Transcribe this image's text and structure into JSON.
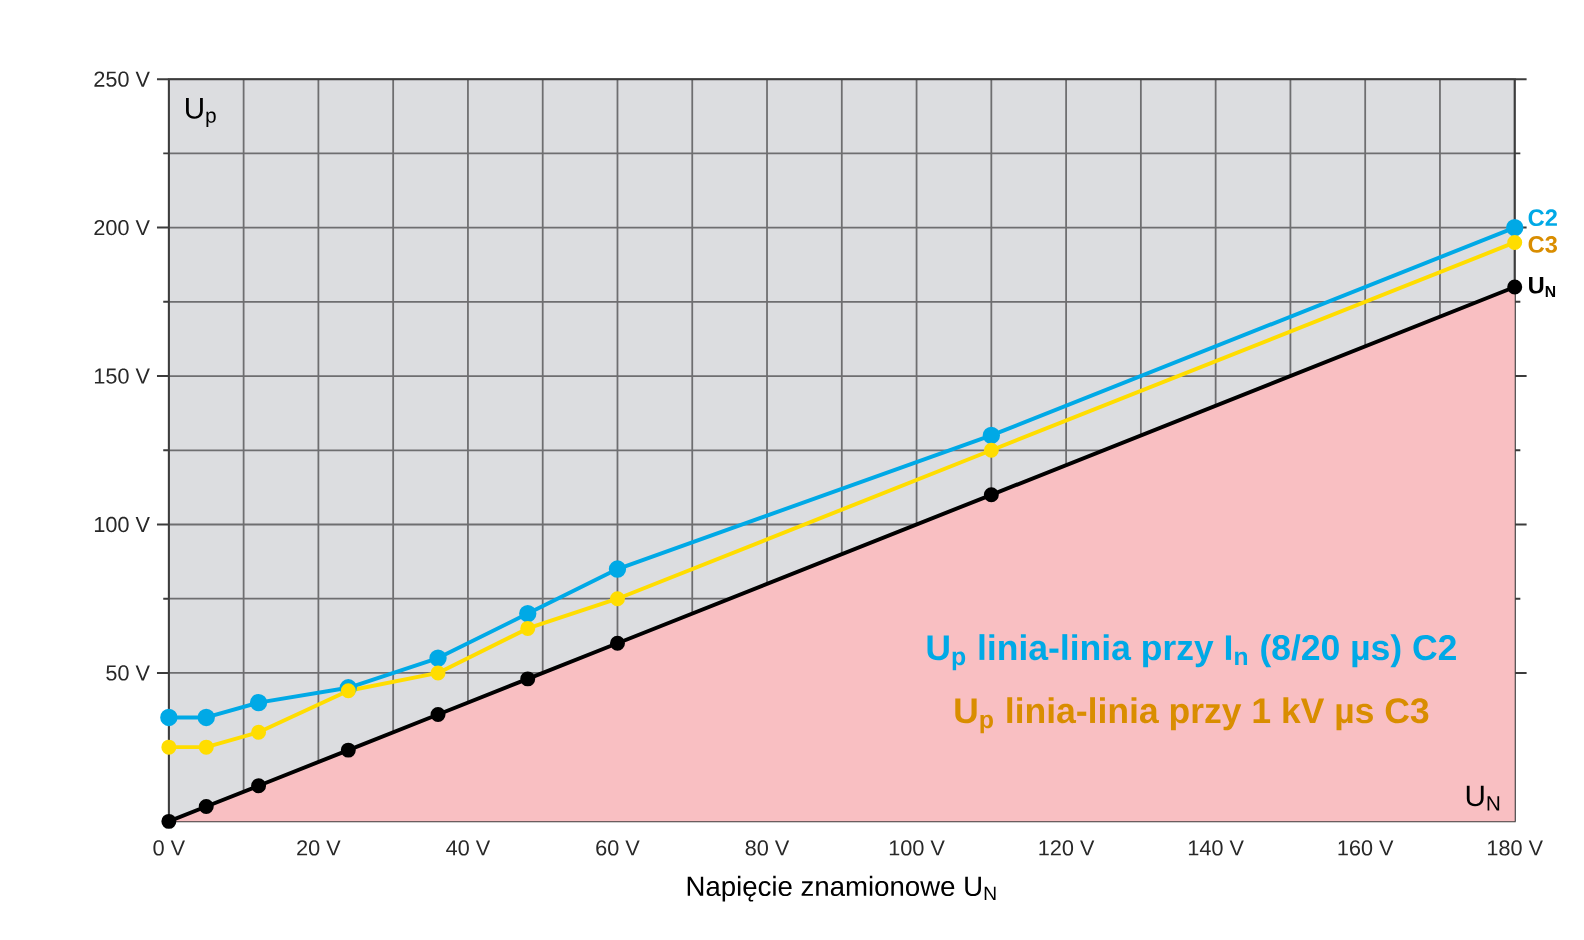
{
  "chart_data": {
    "type": "line",
    "xlabel": "Napięcie znamionowe U$_{N}$",
    "ylabel": "U$_{p}$",
    "xlim": [
      0,
      180
    ],
    "ylim": [
      0,
      250
    ],
    "xticks": [
      {
        "value": 0,
        "label": "0 V"
      },
      {
        "value": 20,
        "label": "20 V"
      },
      {
        "value": 40,
        "label": "40 V"
      },
      {
        "value": 60,
        "label": "60 V"
      },
      {
        "value": 80,
        "label": "80 V"
      },
      {
        "value": 100,
        "label": "100 V"
      },
      {
        "value": 120,
        "label": "120 V"
      },
      {
        "value": 140,
        "label": "140 V"
      },
      {
        "value": 160,
        "label": "160 V"
      },
      {
        "value": 180,
        "label": "180 V"
      }
    ],
    "yticks": [
      {
        "value": 50,
        "label": "50 V"
      },
      {
        "value": 100,
        "label": "100 V"
      },
      {
        "value": 150,
        "label": "150 V"
      },
      {
        "value": 200,
        "label": "200 V"
      },
      {
        "value": 250,
        "label": "250 V"
      }
    ],
    "grid": true,
    "marker": "circle",
    "series": [
      {
        "name": "C2",
        "color": "#00a9e6",
        "x": [
          0,
          5,
          12,
          24,
          36,
          48,
          60,
          110,
          180
        ],
        "values": [
          35,
          35,
          40,
          45,
          55,
          70,
          85,
          130,
          200
        ]
      },
      {
        "name": "C3",
        "color": "#ffdd00",
        "x": [
          0,
          5,
          12,
          24,
          36,
          48,
          60,
          110,
          180
        ],
        "values": [
          25,
          25,
          30,
          44,
          50,
          65,
          75,
          125,
          195
        ]
      },
      {
        "name": "U$_{N}$",
        "type": "area",
        "color": "#f9bfc2",
        "x": [
          0,
          5,
          12,
          24,
          36,
          48,
          60,
          110,
          180
        ],
        "values": [
          0,
          5,
          12,
          24,
          36,
          48,
          60,
          110,
          180
        ]
      }
    ],
    "annotations": [
      "U$_{p}$ linia-linia przy I$_{n}$ (8/20 µs) C2",
      "U$_{p}$ linia-linia przy 1 kV µs C3",
      "U$_{N}$"
    ]
  }
}
